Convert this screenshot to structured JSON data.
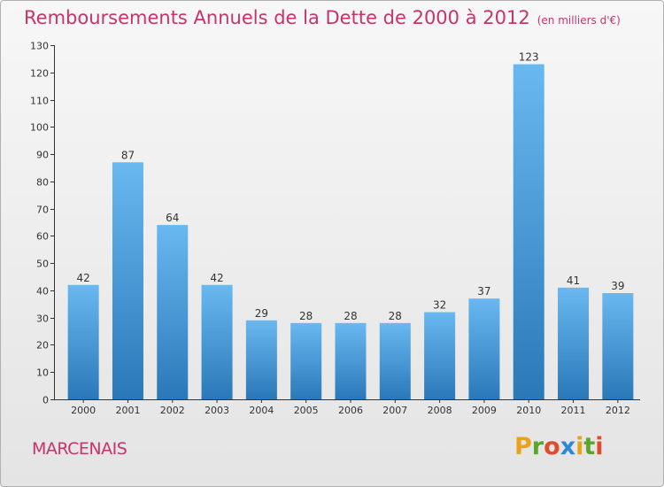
{
  "header": {
    "title": "Remboursements Annuels de la Dette de 2000 à 2012",
    "subtitle": "(en milliers d'€)"
  },
  "commune": "MARCENAIS",
  "logo": {
    "text": "Proxiti",
    "letter_colors": [
      "#e8a21c",
      "#5aa62c",
      "#e04b2b",
      "#2b8ad8",
      "#e8a21c",
      "#5aa62c",
      "#e04b2b"
    ]
  },
  "colors": {
    "bar_light": "#6ab8f0",
    "bar_dark": "#2a78b8",
    "title": "#c8336a"
  },
  "chart_data": {
    "type": "bar",
    "categories": [
      "2000",
      "2001",
      "2002",
      "2003",
      "2004",
      "2005",
      "2006",
      "2007",
      "2008",
      "2009",
      "2010",
      "2011",
      "2012"
    ],
    "values": [
      42,
      87,
      64,
      42,
      29,
      28,
      28,
      28,
      32,
      37,
      123,
      41,
      39
    ],
    "title": "Remboursements Annuels de la Dette de 2000 à 2012",
    "xlabel": "",
    "ylabel": "",
    "ylim": [
      0,
      130
    ],
    "yticks": [
      0,
      10,
      20,
      30,
      40,
      50,
      60,
      70,
      80,
      90,
      100,
      110,
      120,
      130
    ],
    "grid": false
  }
}
